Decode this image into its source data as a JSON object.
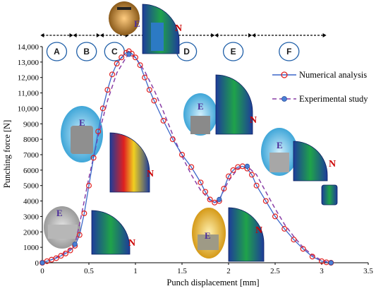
{
  "chart_data": {
    "type": "line",
    "xlabel": "Punch displacement [mm]",
    "ylabel": "Punching force [N]",
    "xlim": [
      0,
      3.5
    ],
    "ylim": [
      0,
      14000
    ],
    "x_ticks": [
      "0",
      "0.5",
      "1",
      "1.5",
      "2",
      "2.5",
      "3",
      "3.5"
    ],
    "y_ticks": [
      "0",
      "1000",
      "2000",
      "3000",
      "4000",
      "5000",
      "6000",
      "7000",
      "8000",
      "9000",
      "10,000",
      "11,000",
      "12,000",
      "13,000",
      "14,000"
    ],
    "legend_position": "right",
    "series": [
      {
        "name": "Numerical analysis",
        "color": "#e02020",
        "x": [
          0.0,
          0.05,
          0.1,
          0.15,
          0.2,
          0.25,
          0.3,
          0.35,
          0.4,
          0.45,
          0.5,
          0.55,
          0.6,
          0.65,
          0.7,
          0.75,
          0.8,
          0.85,
          0.9,
          0.93,
          0.96,
          1.0,
          1.05,
          1.1,
          1.15,
          1.2,
          1.3,
          1.4,
          1.5,
          1.6,
          1.7,
          1.75,
          1.8,
          1.85,
          1.9,
          1.95,
          2.0,
          2.05,
          2.1,
          2.15,
          2.2,
          2.25,
          2.3,
          2.4,
          2.5,
          2.6,
          2.7,
          2.8,
          2.9,
          3.0,
          3.05,
          3.1
        ],
        "y": [
          0,
          100,
          200,
          300,
          450,
          600,
          800,
          1100,
          1800,
          3200,
          5000,
          6800,
          8500,
          10000,
          11200,
          12200,
          12900,
          13300,
          13600,
          13700,
          13550,
          13300,
          12800,
          12000,
          11200,
          10500,
          9200,
          8000,
          7000,
          6200,
          5200,
          4600,
          4100,
          3900,
          4000,
          4800,
          5600,
          6000,
          6200,
          6250,
          6100,
          5700,
          5000,
          4000,
          3000,
          2200,
          1500,
          900,
          400,
          100,
          30,
          0
        ]
      },
      {
        "name": "Experimental study",
        "color": "#8a3fa6",
        "x": [
          0.0,
          0.1,
          0.2,
          0.3,
          0.35,
          0.4,
          0.5,
          0.6,
          0.7,
          0.8,
          0.9,
          0.93,
          1.0,
          1.1,
          1.2,
          1.3,
          1.4,
          1.5,
          1.6,
          1.7,
          1.8,
          1.85,
          1.9,
          2.0,
          2.1,
          2.2,
          2.3,
          2.4,
          2.5,
          2.6,
          2.7,
          2.8,
          2.9,
          3.0,
          3.1
        ],
        "y": [
          0,
          200,
          500,
          900,
          1200,
          2500,
          5500,
          8200,
          10500,
          12300,
          13300,
          13500,
          13300,
          12400,
          11200,
          9800,
          8300,
          6900,
          5700,
          4700,
          4050,
          3900,
          4100,
          5300,
          6100,
          6250,
          5700,
          4600,
          3500,
          2500,
          1700,
          1000,
          500,
          150,
          0
        ]
      }
    ],
    "regions": [
      {
        "label": "A",
        "from": -0.02,
        "to": 0.33
      },
      {
        "label": "B",
        "from": 0.33,
        "to": 0.62
      },
      {
        "label": "C",
        "from": 0.62,
        "to": 0.93
      },
      {
        "label": "D",
        "from": 1.25,
        "to": 1.85
      },
      {
        "label": "E",
        "from": 1.85,
        "to": 2.25
      },
      {
        "label": "F",
        "from": 2.25,
        "to": 3.05
      }
    ],
    "annotations": {
      "experimental_tag": "E",
      "numerical_tag": "N"
    }
  }
}
